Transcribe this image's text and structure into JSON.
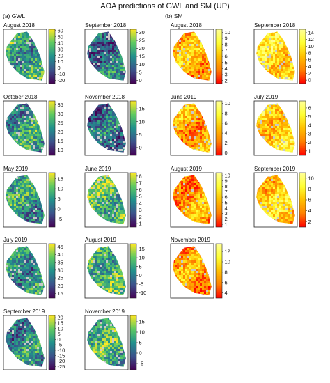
{
  "figure": {
    "title": "AOA predictions of GWL and SM (UP)",
    "section_gwl": "(a) GWL",
    "section_sm": "(b) SM"
  },
  "colors": {
    "viridis": [
      "#440154",
      "#3b528b",
      "#21918c",
      "#5ec962",
      "#fde725"
    ],
    "heat": [
      "#ff0000",
      "#ff8000",
      "#ffc000",
      "#ffff33",
      "#ffff99"
    ],
    "outside_aoa": "#c8c8c8"
  },
  "chart_data": [
    {
      "type": "heatmap",
      "group": "GWL",
      "title": "August 2018",
      "colorbar_ticks": [
        60,
        50,
        40,
        30,
        20,
        10,
        0,
        -10,
        -20
      ],
      "colorbar_range": [
        -25,
        62
      ],
      "colormap": "viridis"
    },
    {
      "type": "heatmap",
      "group": "GWL",
      "title": "September 2018",
      "colorbar_ticks": [
        30,
        25,
        20,
        15,
        10,
        5,
        0
      ],
      "colorbar_range": [
        -2,
        32
      ],
      "colormap": "viridis"
    },
    {
      "type": "heatmap",
      "group": "GWL",
      "title": "October 2018",
      "colorbar_ticks": [
        35,
        30,
        25,
        20,
        15,
        10
      ],
      "colorbar_range": [
        7,
        37
      ],
      "colormap": "viridis"
    },
    {
      "type": "heatmap",
      "group": "GWL",
      "title": "November 2018",
      "colorbar_ticks": [
        15,
        10,
        5,
        0
      ],
      "colorbar_range": [
        -3,
        18
      ],
      "colormap": "viridis"
    },
    {
      "type": "heatmap",
      "group": "GWL",
      "title": "May 2019",
      "colorbar_ticks": [
        15,
        10,
        5,
        0,
        -5
      ],
      "colorbar_range": [
        -9,
        18
      ],
      "colormap": "viridis"
    },
    {
      "type": "heatmap",
      "group": "GWL",
      "title": "June 2019",
      "colorbar_ticks": [
        8,
        7,
        6,
        5,
        4,
        3,
        2,
        1
      ],
      "colorbar_range": [
        0.5,
        8.5
      ],
      "colormap": "viridis"
    },
    {
      "type": "heatmap",
      "group": "GWL",
      "title": "July 2019",
      "colorbar_ticks": [
        45,
        40,
        35,
        30,
        25,
        20,
        15
      ],
      "colorbar_range": [
        12,
        47
      ],
      "colormap": "viridis"
    },
    {
      "type": "heatmap",
      "group": "GWL",
      "title": "August 2019",
      "colorbar_ticks": [
        15,
        10,
        5,
        0,
        -5,
        -10
      ],
      "colorbar_range": [
        -13,
        18
      ],
      "colormap": "viridis"
    },
    {
      "type": "heatmap",
      "group": "GWL",
      "title": "September 2019",
      "colorbar_ticks": [
        20,
        15,
        10,
        5,
        0,
        -5,
        -10,
        -15,
        -20,
        -25
      ],
      "colorbar_range": [
        -28,
        22
      ],
      "colormap": "viridis"
    },
    {
      "type": "heatmap",
      "group": "GWL",
      "title": "November 2019",
      "colorbar_ticks": [
        15,
        10,
        5,
        0,
        -5
      ],
      "colorbar_range": [
        -8,
        18
      ],
      "colormap": "viridis"
    },
    {
      "type": "heatmap",
      "group": "SM",
      "title": "August 2018",
      "colorbar_ticks": [
        10,
        9,
        8,
        7,
        6,
        5,
        4,
        3,
        2
      ],
      "colorbar_range": [
        1.5,
        10.5
      ],
      "colormap": "heat"
    },
    {
      "type": "heatmap",
      "group": "SM",
      "title": "September 2018",
      "colorbar_ticks": [
        14,
        12,
        10,
        8,
        6,
        4,
        2,
        0
      ],
      "colorbar_range": [
        -1,
        15
      ],
      "colormap": "heat"
    },
    {
      "type": "heatmap",
      "group": "SM",
      "title": "June 2019",
      "colorbar_ticks": [
        10,
        8,
        6,
        4,
        2,
        0
      ],
      "colorbar_range": [
        -0.5,
        10.5
      ],
      "colormap": "heat"
    },
    {
      "type": "heatmap",
      "group": "SM",
      "title": "July 2019",
      "colorbar_ticks": [
        6,
        5,
        4,
        3,
        2,
        1
      ],
      "colorbar_range": [
        0.5,
        6.8
      ],
      "colormap": "heat"
    },
    {
      "type": "heatmap",
      "group": "SM",
      "title": "August 2019",
      "colorbar_ticks": [
        10,
        9,
        8,
        7,
        6,
        5,
        4,
        3,
        2,
        1
      ],
      "colorbar_range": [
        0.5,
        10.5
      ],
      "colormap": "heat"
    },
    {
      "type": "heatmap",
      "group": "SM",
      "title": "September 2019",
      "colorbar_ticks": [
        10,
        8,
        6,
        4,
        2
      ],
      "colorbar_range": [
        1,
        11
      ],
      "colormap": "heat"
    },
    {
      "type": "heatmap",
      "group": "SM",
      "title": "November 2019",
      "colorbar_ticks": [
        12,
        10,
        8,
        6,
        4
      ],
      "colorbar_range": [
        3,
        13.5
      ],
      "colormap": "heat"
    }
  ]
}
